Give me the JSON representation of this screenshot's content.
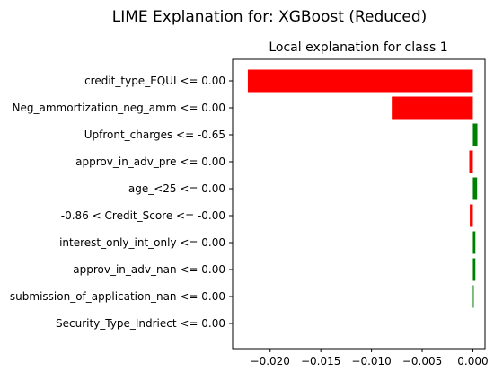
{
  "suptitle": "LIME Explanation for: XGBoost (Reduced)",
  "chart_data": {
    "type": "bar",
    "orientation": "horizontal",
    "title": "Local explanation for class 1",
    "xlabel": "",
    "ylabel": "",
    "xlim": [
      -0.0237,
      0.0012
    ],
    "xticks": [
      -0.02,
      -0.015,
      -0.01,
      -0.005,
      0.0
    ],
    "xtick_labels": [
      "−0.020",
      "−0.015",
      "−0.010",
      "−0.005",
      "0.000"
    ],
    "grid": false,
    "colors": {
      "positive": "#008000",
      "negative": "#ff0000"
    },
    "categories": [
      "credit_type_EQUI <= 0.00",
      "Neg_ammortization_neg_amm <= 0.00",
      "Upfront_charges <= -0.65",
      "approv_in_adv_pre <= 0.00",
      "age_<25 <= 0.00",
      "-0.86 < Credit_Score <= -0.00",
      "interest_only_int_only <= 0.00",
      "approv_in_adv_nan <= 0.00",
      "submission_of_application_nan <= 0.00",
      "Security_Type_Indriect <= 0.00"
    ],
    "values": [
      -0.0222,
      -0.008,
      0.00045,
      -0.00035,
      0.00042,
      -0.0003,
      0.00025,
      0.00025,
      8e-05,
      0.0
    ]
  }
}
